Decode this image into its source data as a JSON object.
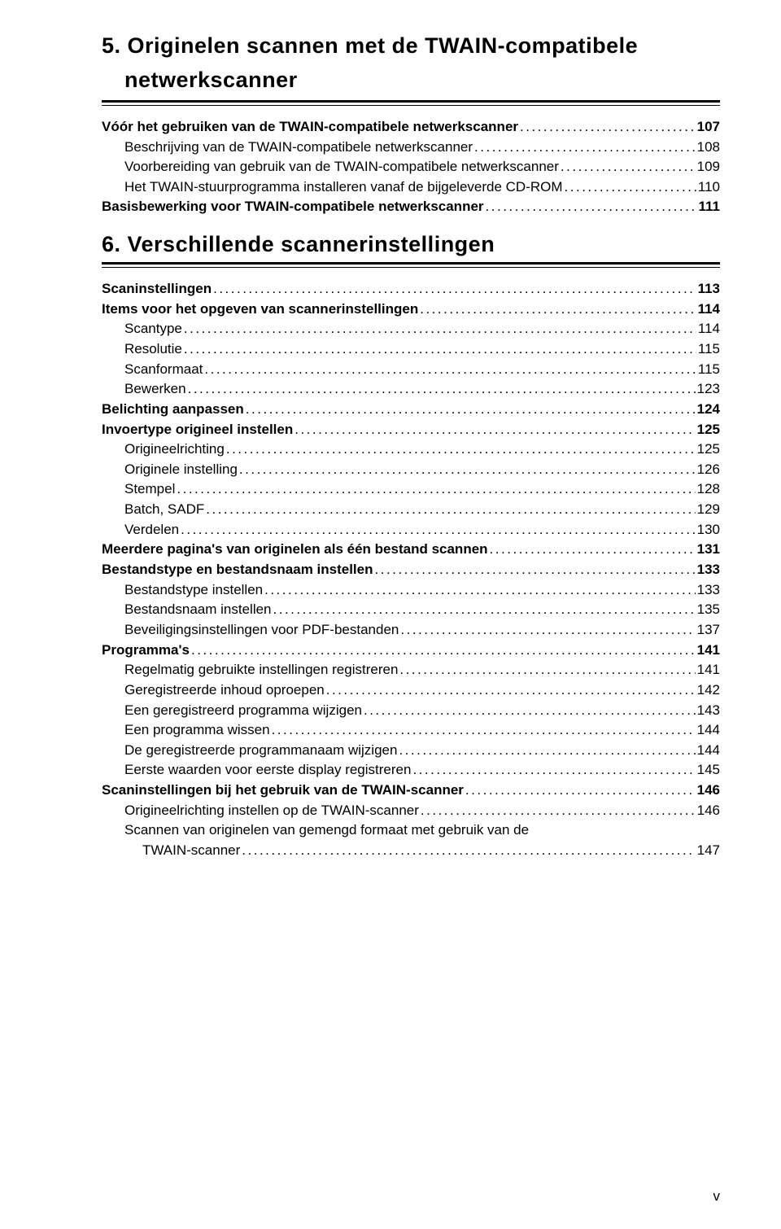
{
  "chapter5": {
    "title_line1": "5. Originelen scannen met de TWAIN-compatibele",
    "title_line2": "netwerkscanner",
    "rows": [
      {
        "label": "Vóór het gebruiken van de TWAIN-compatibele netwerkscanner",
        "page": "107",
        "bold": true,
        "indent": 0
      },
      {
        "label": "Beschrijving van de TWAIN-compatibele netwerkscanner",
        "page": "108",
        "bold": false,
        "indent": 1
      },
      {
        "label": "Voorbereiding van gebruik van de TWAIN-compatibele netwerkscanner",
        "page": "109",
        "bold": false,
        "indent": 1
      },
      {
        "label": "Het TWAIN-stuurprogramma installeren vanaf de bijgeleverde CD-ROM",
        "page": "110",
        "bold": false,
        "indent": 1
      },
      {
        "label": "Basisbewerking voor TWAIN-compatibele netwerkscanner",
        "page": "111",
        "bold": true,
        "indent": 0
      }
    ]
  },
  "chapter6": {
    "title": "6. Verschillende scannerinstellingen",
    "rows": [
      {
        "label": "Scaninstellingen",
        "page": "113",
        "bold": true,
        "indent": 0
      },
      {
        "label": "Items voor het opgeven van scannerinstellingen",
        "page": "114",
        "bold": true,
        "indent": 0
      },
      {
        "label": "Scantype",
        "page": "114",
        "bold": false,
        "indent": 1
      },
      {
        "label": "Resolutie",
        "page": "115",
        "bold": false,
        "indent": 1
      },
      {
        "label": "Scanformaat",
        "page": "115",
        "bold": false,
        "indent": 1
      },
      {
        "label": "Bewerken",
        "page": "123",
        "bold": false,
        "indent": 1
      },
      {
        "label": "Belichting aanpassen",
        "page": "124",
        "bold": true,
        "indent": 0
      },
      {
        "label": "Invoertype origineel instellen",
        "page": "125",
        "bold": true,
        "indent": 0
      },
      {
        "label": "Origineelrichting",
        "page": "125",
        "bold": false,
        "indent": 1
      },
      {
        "label": "Originele instelling",
        "page": "126",
        "bold": false,
        "indent": 1
      },
      {
        "label": "Stempel",
        "page": "128",
        "bold": false,
        "indent": 1
      },
      {
        "label": "Batch, SADF",
        "page": "129",
        "bold": false,
        "indent": 1
      },
      {
        "label": "Verdelen",
        "page": "130",
        "bold": false,
        "indent": 1
      },
      {
        "label": "Meerdere pagina's van originelen als één bestand scannen",
        "page": "131",
        "bold": true,
        "indent": 0
      },
      {
        "label": "Bestandstype en bestandsnaam instellen",
        "page": "133",
        "bold": true,
        "indent": 0
      },
      {
        "label": "Bestandstype instellen",
        "page": "133",
        "bold": false,
        "indent": 1
      },
      {
        "label": "Bestandsnaam instellen",
        "page": "135",
        "bold": false,
        "indent": 1
      },
      {
        "label": "Beveiligingsinstellingen voor PDF-bestanden",
        "page": "137",
        "bold": false,
        "indent": 1
      },
      {
        "label": "Programma's",
        "page": "141",
        "bold": true,
        "indent": 0
      },
      {
        "label": "Regelmatig gebruikte instellingen registreren",
        "page": "141",
        "bold": false,
        "indent": 1
      },
      {
        "label": "Geregistreerde inhoud oproepen",
        "page": "142",
        "bold": false,
        "indent": 1
      },
      {
        "label": "Een geregistreerd programma wijzigen",
        "page": "143",
        "bold": false,
        "indent": 1
      },
      {
        "label": "Een programma wissen",
        "page": "144",
        "bold": false,
        "indent": 1
      },
      {
        "label": "De geregistreerde programmanaam wijzigen",
        "page": "144",
        "bold": false,
        "indent": 1
      },
      {
        "label": "Eerste waarden voor eerste display registreren",
        "page": "145",
        "bold": false,
        "indent": 1
      },
      {
        "label": "Scaninstellingen bij het gebruik van de TWAIN-scanner",
        "page": "146",
        "bold": true,
        "indent": 0
      },
      {
        "label": "Origineelrichting instellen op de TWAIN-scanner",
        "page": "146",
        "bold": false,
        "indent": 1
      }
    ],
    "wrapped": {
      "line1": "Scannen van originelen van gemengd formaat met gebruik van de",
      "line2": "TWAIN-scanner",
      "page": "147"
    }
  },
  "page_number": "v"
}
